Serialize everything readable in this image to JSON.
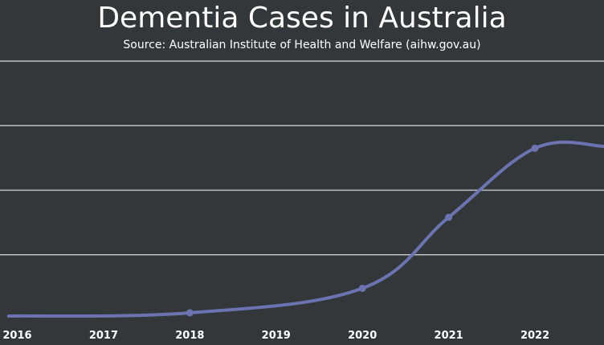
{
  "chart_data": {
    "type": "line",
    "title": "Dementia Cases in Australia",
    "subtitle": "Source: Australian Institute of Health and Welfare (aihw.gov.au)",
    "xlabel": "",
    "ylabel": "",
    "x_ticks": [
      "2016",
      "2017",
      "2018",
      "2019",
      "2020",
      "2021",
      "2022"
    ],
    "series": [
      {
        "x": [
          2015.9,
          2018,
          2020,
          2021,
          2022,
          2022.8
        ],
        "values": [
          0.5,
          1.0,
          4.8,
          15.8,
          26.5,
          26.8
        ],
        "color": "#6b74b0"
      }
    ],
    "ylim": [
      0,
      40
    ],
    "xlim": [
      2015.8,
      2022.8
    ],
    "grid": true,
    "legend": "none"
  }
}
